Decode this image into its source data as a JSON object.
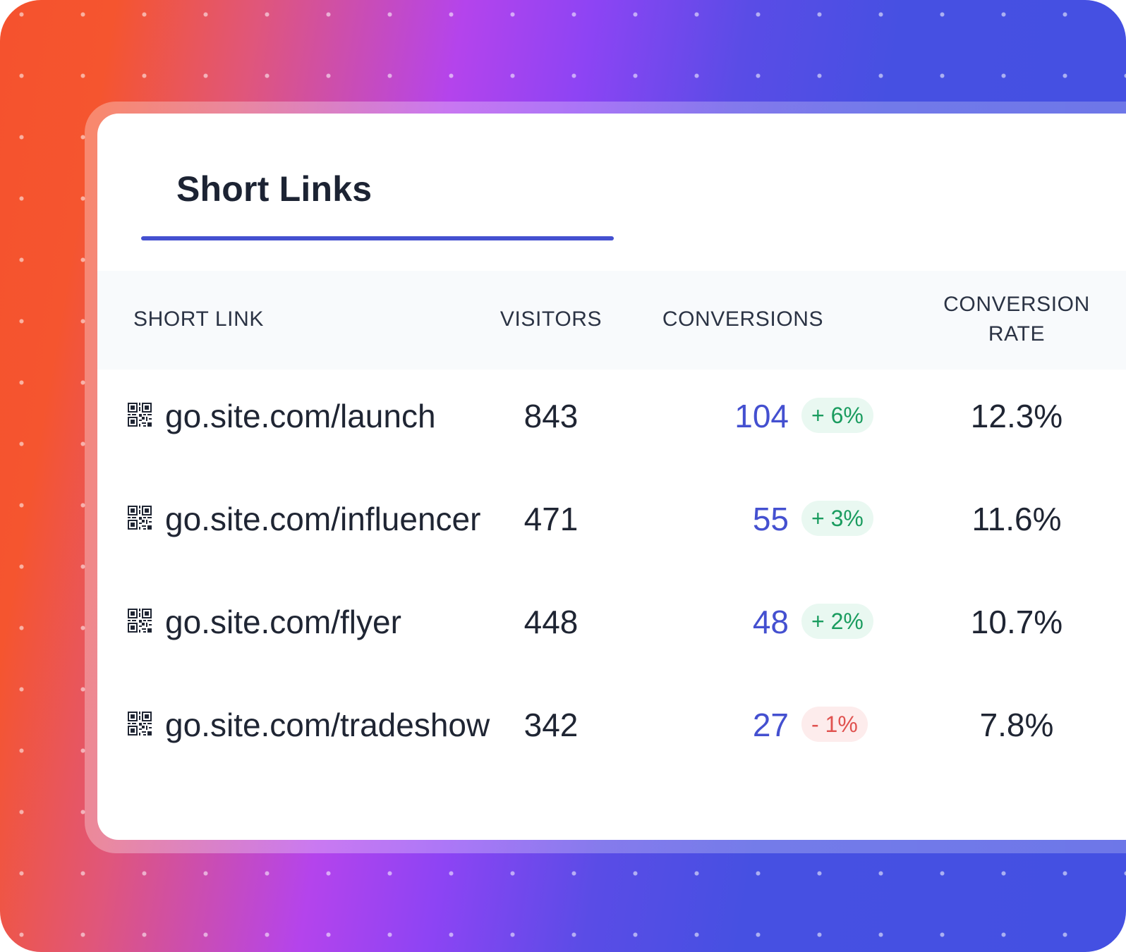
{
  "tab": {
    "title": "Short Links"
  },
  "columns": {
    "short_link": "SHORT LINK",
    "visitors": "VISITORS",
    "conversions": "CONVERSIONS",
    "rate_line1": "CONVERSION",
    "rate_line2": "RATE"
  },
  "rows": [
    {
      "link": "go.site.com/launch",
      "visitors": "843",
      "conversions": "104",
      "change": "+ 6%",
      "change_direction": "up",
      "rate": "12.3%"
    },
    {
      "link": "go.site.com/influencer",
      "visitors": "471",
      "conversions": "55",
      "change": "+ 3%",
      "change_direction": "up",
      "rate": "11.6%"
    },
    {
      "link": "go.site.com/flyer",
      "visitors": "448",
      "conversions": "48",
      "change": "+ 2%",
      "change_direction": "up",
      "rate": "10.7%"
    },
    {
      "link": "go.site.com/tradeshow",
      "visitors": "342",
      "conversions": "27",
      "change": "- 1%",
      "change_direction": "down",
      "rate": "7.8%"
    }
  ],
  "colors": {
    "accent": "#4450d0",
    "positive": "#1a9c5f",
    "negative": "#e0524f",
    "gradient_start": "#f5522e",
    "gradient_mid": "#b444ec",
    "gradient_end": "#4450e2"
  },
  "icons": {
    "row_icon": "qr-code-icon"
  }
}
